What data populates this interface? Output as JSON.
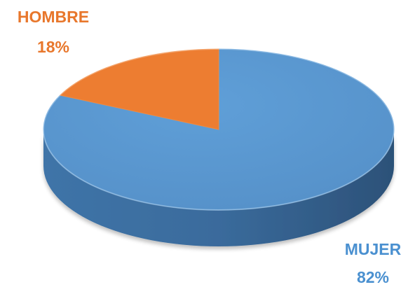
{
  "chart_data": {
    "type": "pie",
    "style": "3d",
    "title": "",
    "slices": [
      {
        "label": "HOMBRE",
        "value": 18,
        "display": "18%",
        "color": "#ED7D31"
      },
      {
        "label": "MUJER",
        "value": 82,
        "display": "82%",
        "color": "#5B9BD5"
      }
    ],
    "legend": "none",
    "data_labels": "outside"
  }
}
